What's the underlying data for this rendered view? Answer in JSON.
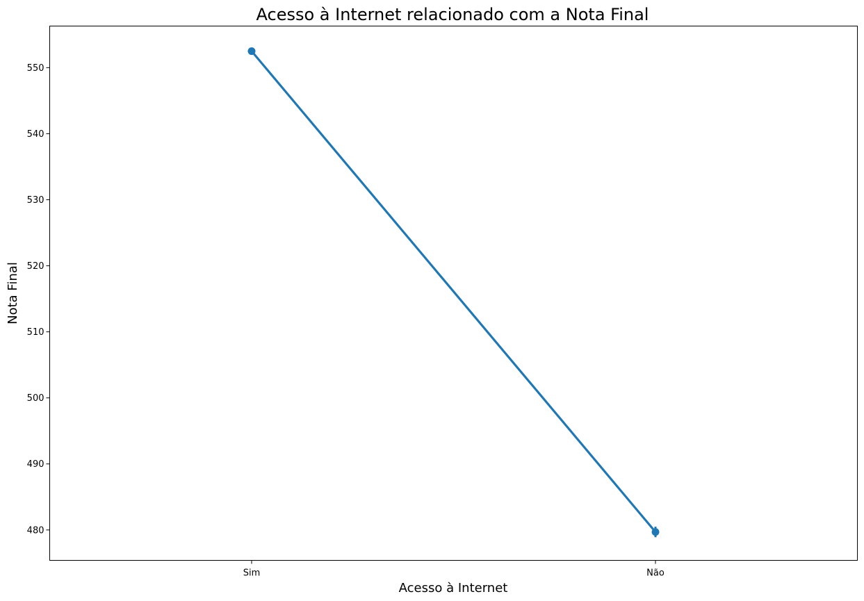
{
  "chart_data": {
    "type": "line",
    "title": "Acesso à Internet relacionado com a Nota Final",
    "xlabel": "Acesso à Internet",
    "ylabel": "Nota Final",
    "categories": [
      "Sim",
      "Não"
    ],
    "series": [
      {
        "values": [
          552.5,
          479.7
        ],
        "error_bars": [
          [
            552.3,
            552.7
          ],
          [
            478.9,
            480.5
          ]
        ],
        "color": "#1f77b4"
      }
    ],
    "ylim": [
      475.4,
      556.3
    ],
    "yticks": [
      480,
      490,
      500,
      510,
      520,
      530,
      540,
      550
    ],
    "grid": false,
    "legend": "none"
  }
}
